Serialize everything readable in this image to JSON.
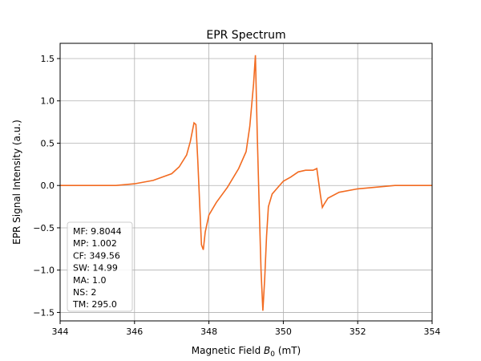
{
  "chart_data": {
    "type": "line",
    "title": "EPR Spectrum",
    "xlabel": "Magnetic Field B0 (mT)",
    "xlabel_main": "Magnetic Field ",
    "xlabel_symbol": "B",
    "xlabel_sub": "0",
    "xlabel_unit": " (mT)",
    "ylabel": "EPR Signal Intensity (a.u.)",
    "xlim": [
      344,
      354
    ],
    "ylim": [
      -1.6,
      1.68
    ],
    "xticks": [
      "344",
      "346",
      "348",
      "350",
      "352",
      "354"
    ],
    "yticks": [
      "−1.5",
      "−1.0",
      "−0.5",
      "0.0",
      "0.5",
      "1.0",
      "1.5"
    ],
    "xtick_values": [
      344,
      346,
      348,
      350,
      352,
      354
    ],
    "ytick_values": [
      -1.5,
      -1.0,
      -0.5,
      0.0,
      0.5,
      1.0,
      1.5
    ],
    "grid": true,
    "line_color": "#f26b21",
    "series": [
      {
        "x": [
          344.0,
          344.5,
          345.0,
          345.5,
          346.0,
          346.5,
          347.0,
          347.2,
          347.4,
          347.5,
          347.6,
          347.65,
          347.7,
          347.75,
          347.8,
          347.85,
          347.9,
          348.0,
          348.2,
          348.5,
          348.8,
          349.0,
          349.1,
          349.2,
          349.25,
          349.3,
          349.35,
          349.4,
          349.45,
          349.5,
          349.55,
          349.6,
          349.7,
          349.8,
          350.0,
          350.2,
          350.4,
          350.6,
          350.8,
          350.9,
          351.0,
          351.05,
          351.1,
          351.2,
          351.5,
          352.0,
          352.5,
          353.0,
          353.5,
          354.0
        ],
        "y": [
          0.0,
          0.0,
          0.0,
          0.0,
          0.02,
          0.06,
          0.14,
          0.22,
          0.36,
          0.52,
          0.74,
          0.72,
          0.3,
          -0.2,
          -0.7,
          -0.76,
          -0.55,
          -0.35,
          -0.2,
          -0.02,
          0.2,
          0.4,
          0.7,
          1.2,
          1.54,
          0.6,
          -0.2,
          -1.0,
          -1.48,
          -1.1,
          -0.6,
          -0.25,
          -0.1,
          -0.05,
          0.05,
          0.1,
          0.16,
          0.18,
          0.18,
          0.2,
          -0.12,
          -0.26,
          -0.22,
          -0.15,
          -0.08,
          -0.04,
          -0.02,
          0.0,
          0.0,
          0.0
        ]
      }
    ],
    "legend_position": "lower-left",
    "legend_lines": [
      "MF: 9.8044",
      "MP: 1.002",
      "CF: 349.56",
      "SW: 14.99",
      "MA: 1.0",
      "NS: 2",
      "TM: 295.0"
    ]
  }
}
